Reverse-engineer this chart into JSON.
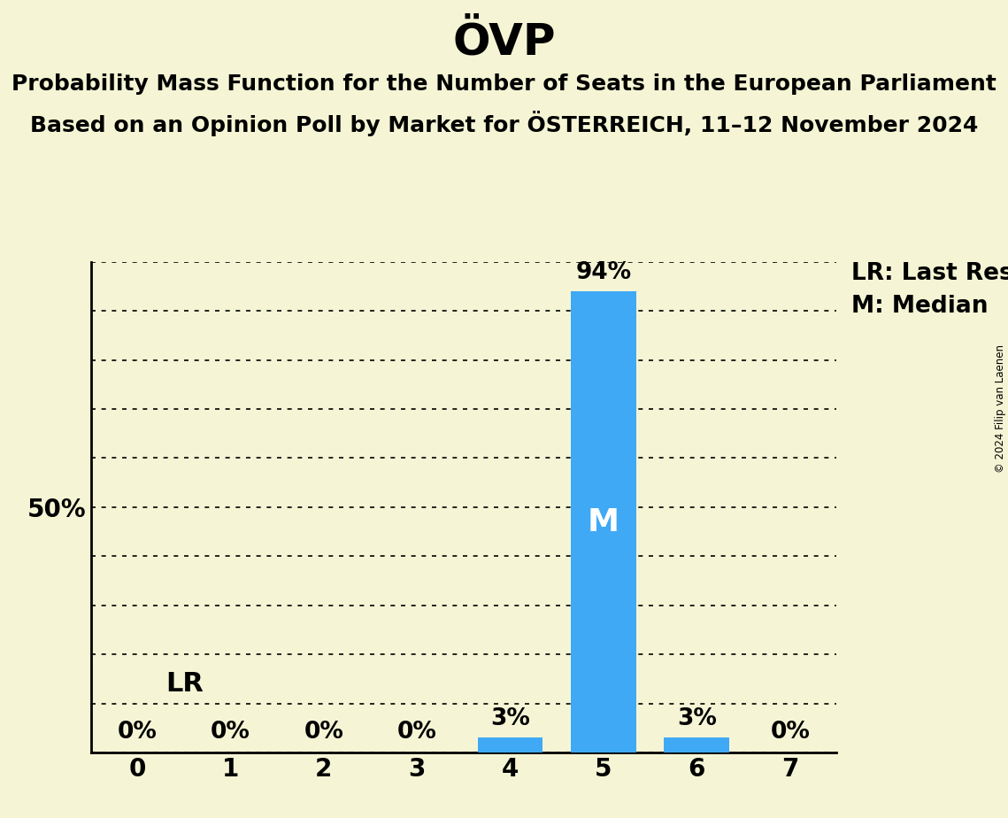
{
  "title": "ÖVP",
  "subtitle_line1": "Probability Mass Function for the Number of Seats in the European Parliament",
  "subtitle_line2": "Based on an Opinion Poll by Market for ÖSTERREICH, 11–12 November 2024",
  "categories": [
    0,
    1,
    2,
    3,
    4,
    5,
    6,
    7
  ],
  "values": [
    0,
    0,
    0,
    0,
    3,
    94,
    3,
    0
  ],
  "bar_color": "#3fa9f5",
  "background_color": "#f5f5d5",
  "median_seat": 5,
  "last_result_seat": 5,
  "lr_label": "LR",
  "median_label": "M",
  "legend_lr": "LR: Last Result",
  "legend_m": "M: Median",
  "ylim": [
    0,
    100
  ],
  "yticks": [
    0,
    10,
    20,
    30,
    40,
    50,
    60,
    70,
    80,
    90,
    100
  ],
  "copyright": "© 2024 Filip van Laenen",
  "title_fontsize": 36,
  "subtitle_fontsize": 18,
  "bar_label_fontsize": 19,
  "axis_tick_fontsize": 20,
  "median_fontsize": 26,
  "lr_fontsize": 22,
  "legend_fontsize": 19
}
